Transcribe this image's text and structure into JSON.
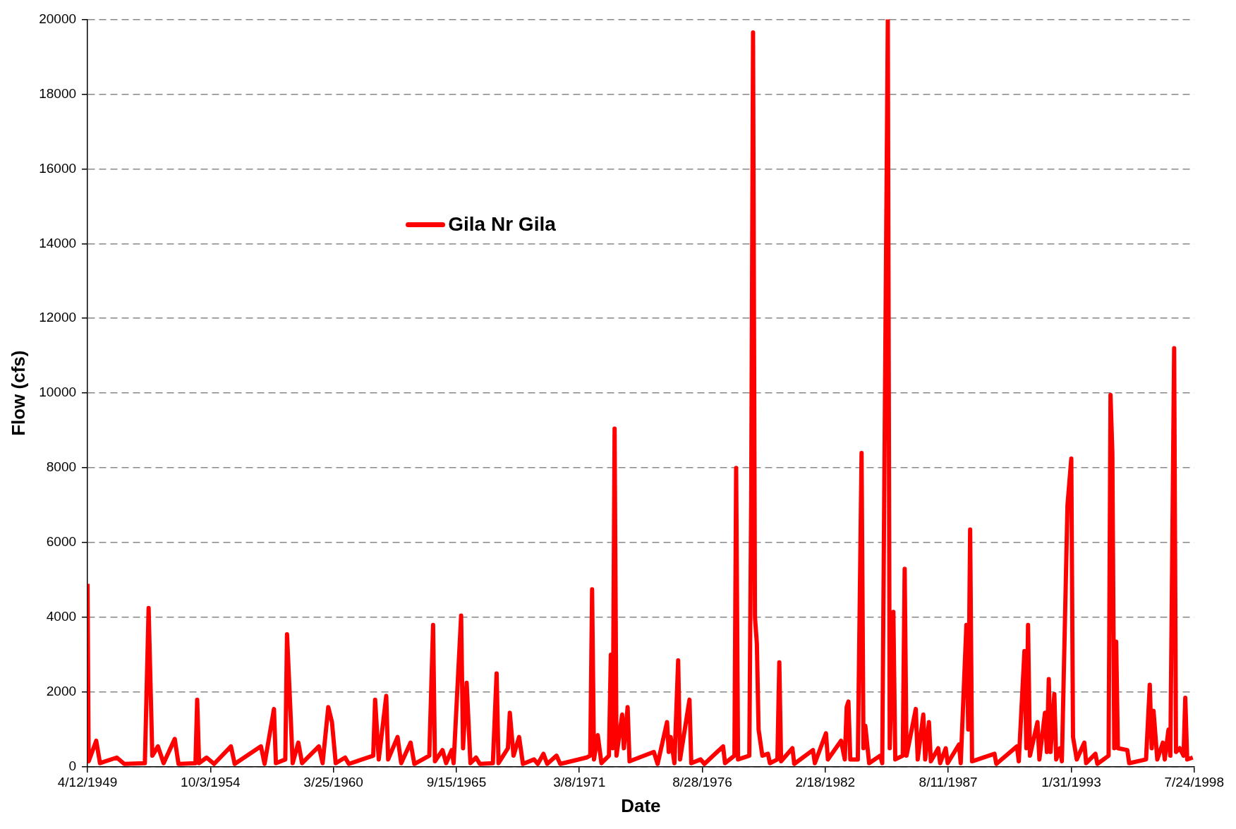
{
  "chart_data": {
    "type": "line",
    "xlabel": "Date",
    "ylabel": "Flow (cfs)",
    "legend": "top left",
    "grid": "y",
    "line_style": "solid",
    "marker": "none",
    "xlim": [
      "1949-04-12",
      "1998-07-24"
    ],
    "xticks": [
      {
        "value": "1949-04-12",
        "label": "4/12/1949"
      },
      {
        "value": "1954-10-03",
        "label": "10/3/1954"
      },
      {
        "value": "1960-03-25",
        "label": "3/25/1960"
      },
      {
        "value": "1965-09-15",
        "label": "9/15/1965"
      },
      {
        "value": "1971-03-08",
        "label": "3/8/1971"
      },
      {
        "value": "1976-08-28",
        "label": "8/28/1976"
      },
      {
        "value": "1982-02-18",
        "label": "2/18/1982"
      },
      {
        "value": "1987-08-11",
        "label": "8/11/1987"
      },
      {
        "value": "1993-01-31",
        "label": "1/31/1993"
      },
      {
        "value": "1998-07-24",
        "label": "7/24/1998"
      }
    ],
    "ylim": [
      0,
      20000
    ],
    "yticks": [
      0,
      2000,
      4000,
      6000,
      8000,
      10000,
      12000,
      14000,
      16000,
      18000,
      20000
    ],
    "series": [
      {
        "name": "Gila Nr Gila",
        "color": "#ff0000",
        "x": [
          "1949-04-12",
          "1949-05",
          "1949-09",
          "1949-11",
          "1950-08",
          "1950-12",
          "1951-11",
          "1952-01",
          "1952-03",
          "1952-06",
          "1952-09",
          "1953-03",
          "1953-05",
          "1954-02",
          "1954-03",
          "1954-04",
          "1954-08",
          "1954-12",
          "1955-09",
          "1955-11",
          "1957-01",
          "1957-03",
          "1957-08",
          "1957-09",
          "1958-02",
          "1958-03",
          "1958-05",
          "1958-06",
          "1958-09",
          "1958-11",
          "1959-08",
          "1959-10",
          "1960-01",
          "1960-03",
          "1960-05",
          "1960-10",
          "1960-12",
          "1962-01",
          "1962-02",
          "1962-04",
          "1962-08",
          "1962-09",
          "1963-02",
          "1963-04",
          "1963-09",
          "1963-11",
          "1964-07",
          "1964-09",
          "1964-10",
          "1965-02",
          "1965-04",
          "1965-07",
          "1965-08",
          "1965-12",
          "1966-01",
          "1966-03",
          "1966-05",
          "1966-08",
          "1966-10",
          "1967-05",
          "1967-07",
          "1967-08",
          "1968-01",
          "1968-02",
          "1968-04",
          "1968-07",
          "1968-09",
          "1969-03",
          "1969-05",
          "1969-08",
          "1969-10",
          "1970-03",
          "1970-05",
          "1971-07",
          "1971-09",
          "1971-10",
          "1971-11",
          "1972-01",
          "1972-03",
          "1972-07",
          "1972-08",
          "1972-09",
          "1972-10",
          "1972-11",
          "1973-02",
          "1973-03",
          "1973-05",
          "1973-06",
          "1974-07",
          "1974-09",
          "1975-02",
          "1975-03",
          "1975-04",
          "1975-06",
          "1975-08",
          "1975-09",
          "1976-02",
          "1976-03",
          "1976-08",
          "1976-10",
          "1977-08",
          "1977-09",
          "1978-02",
          "1978-03",
          "1978-04",
          "1978-10",
          "1978-11",
          "1978-12",
          "1979-01",
          "1979-02",
          "1979-03",
          "1979-05",
          "1979-08",
          "1979-09",
          "1980-01",
          "1980-02",
          "1980-03",
          "1980-09",
          "1980-10",
          "1981-08",
          "1981-09",
          "1982-03",
          "1982-04",
          "1982-11",
          "1983-01",
          "1983-02",
          "1983-03",
          "1983-04",
          "1983-08",
          "1983-10",
          "1983-11",
          "1983-12",
          "1984-02",
          "1984-08",
          "1984-09",
          "1984-12",
          "1985-01",
          "1985-03",
          "1985-04",
          "1985-08",
          "1985-09",
          "1985-10",
          "1986-03",
          "1986-04",
          "1986-07",
          "1986-08",
          "1986-10",
          "1986-11",
          "1987-03",
          "1987-04",
          "1987-07",
          "1987-08",
          "1988-02",
          "1988-03",
          "1988-06",
          "1988-07",
          "1988-08",
          "1988-09",
          "1989-09",
          "1989-10",
          "1990-09",
          "1990-10",
          "1991-01",
          "1991-02",
          "1991-03",
          "1991-04",
          "1991-08",
          "1991-09",
          "1991-12",
          "1992-01",
          "1992-02",
          "1992-03",
          "1992-05",
          "1992-06",
          "1992-08",
          "1992-09",
          "1992-12",
          "1993-02",
          "1993-03",
          "1993-05",
          "1993-09",
          "1993-10",
          "1994-03",
          "1994-04",
          "1994-10",
          "1994-11",
          "1994-12",
          "1995-01",
          "1995-02",
          "1995-03",
          "1995-08",
          "1995-09",
          "1996-06",
          "1996-08",
          "1996-09",
          "1996-10",
          "1996-12",
          "1997-03",
          "1997-04",
          "1997-06",
          "1997-07",
          "1997-09",
          "1997-10",
          "1997-12",
          "1998-02",
          "1998-03",
          "1998-04",
          "1998-07"
        ],
        "values": [
          4900,
          150,
          700,
          100,
          250,
          80,
          100,
          4250,
          300,
          550,
          100,
          750,
          80,
          100,
          1800,
          100,
          250,
          80,
          550,
          80,
          550,
          80,
          1550,
          100,
          200,
          3550,
          1300,
          100,
          650,
          100,
          550,
          100,
          1600,
          1200,
          100,
          250,
          80,
          300,
          1800,
          200,
          1900,
          200,
          800,
          100,
          650,
          80,
          300,
          3800,
          150,
          450,
          100,
          450,
          100,
          4050,
          500,
          2250,
          100,
          250,
          80,
          100,
          2500,
          100,
          500,
          1450,
          300,
          800,
          80,
          200,
          80,
          350,
          80,
          300,
          80,
          250,
          300,
          4750,
          200,
          850,
          100,
          300,
          3000,
          500,
          9050,
          300,
          1400,
          500,
          1600,
          150,
          400,
          80,
          1200,
          400,
          800,
          100,
          2850,
          200,
          1800,
          100,
          200,
          80,
          550,
          100,
          300,
          8000,
          200,
          300,
          7200,
          19650,
          4000,
          3300,
          1000,
          300,
          350,
          100,
          200,
          2800,
          150,
          500,
          80,
          450,
          100,
          900,
          200,
          700,
          200,
          1600,
          1750,
          200,
          200,
          8400,
          500,
          1100,
          100,
          300,
          100,
          20000,
          500,
          4150,
          200,
          300,
          5300,
          300,
          1550,
          200,
          1400,
          200,
          1200,
          150,
          500,
          100,
          500,
          100,
          600,
          100,
          3800,
          1000,
          6350,
          150,
          350,
          80,
          550,
          150,
          3100,
          500,
          3800,
          300,
          1200,
          200,
          1450,
          400,
          2350,
          400,
          1950,
          200,
          500,
          150,
          7000,
          8250,
          800,
          200,
          650,
          100,
          350,
          80,
          300,
          9950,
          8400,
          500,
          3350,
          500,
          450,
          100,
          200,
          2200,
          500,
          1500,
          200,
          650,
          200,
          1000,
          300,
          11200,
          400,
          500,
          300,
          1850,
          200,
          250
        ]
      }
    ]
  }
}
